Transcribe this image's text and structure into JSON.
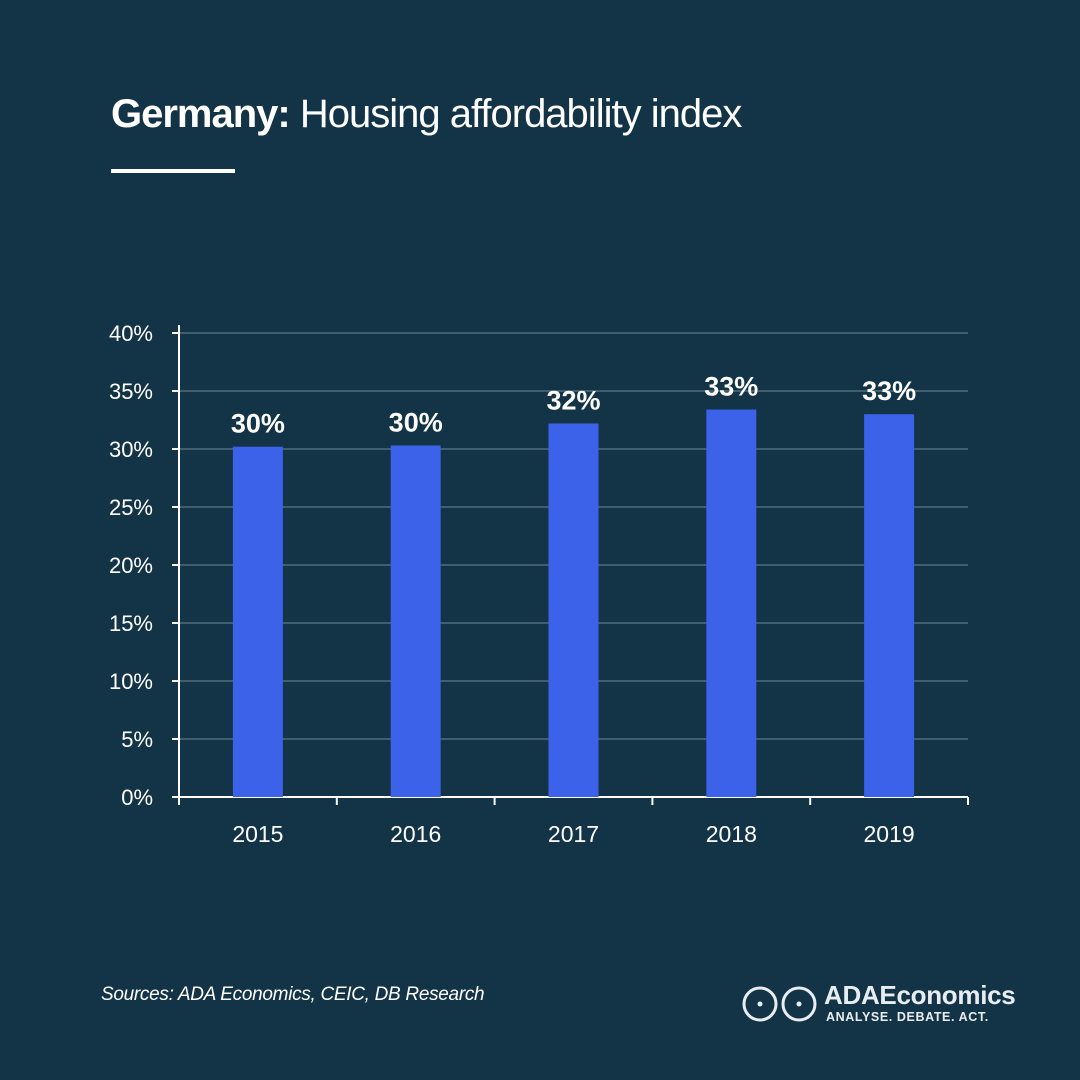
{
  "header": {
    "country": "Germany:",
    "subject": "Housing affordability index"
  },
  "chart_data": {
    "type": "bar",
    "categories": [
      "2015",
      "2016",
      "2017",
      "2018",
      "2019"
    ],
    "values": [
      30.2,
      30.3,
      32.2,
      33.4,
      33.0
    ],
    "data_labels": [
      "30%",
      "30%",
      "32%",
      "33%",
      "33%"
    ],
    "yticks": [
      "0%",
      "5%",
      "10%",
      "15%",
      "20%",
      "25%",
      "30%",
      "35%",
      "40%"
    ],
    "ylim": [
      0,
      40
    ],
    "grid": true,
    "bar_color": "#3b62e8",
    "background": "#133447"
  },
  "footer": {
    "source": "Sources: ADA Economics, CEIC, DB Research",
    "brand_name": "ADAEconomics",
    "brand_tagline": "ANALYSE. DEBATE. ACT."
  }
}
